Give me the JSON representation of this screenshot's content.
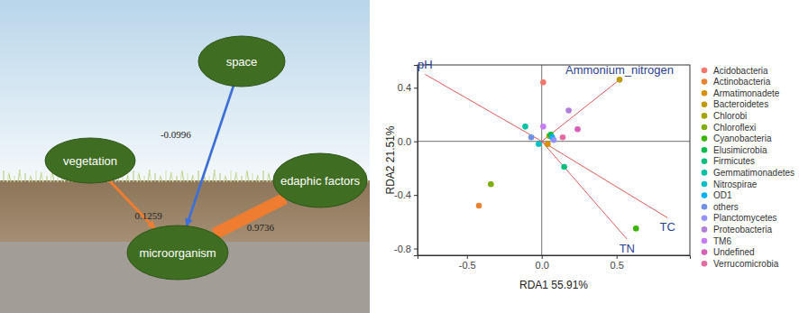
{
  "diagram": {
    "nodes": [
      {
        "label": "space"
      },
      {
        "label": "vegetation"
      },
      {
        "label": "edaphic factors"
      },
      {
        "label": "microorganism"
      }
    ],
    "edges": [
      {
        "from": 0,
        "to": 3,
        "value": -0.0996,
        "color": "#3d6fd6"
      },
      {
        "from": 1,
        "to": 3,
        "value": 0.1259,
        "color": "#ee7d32"
      },
      {
        "from": 2,
        "to": 3,
        "value": 0.9736,
        "color": "#ee7d32"
      }
    ]
  },
  "chart_data": {
    "type": "scatter",
    "x_label": "RDA1 55.91%",
    "y_label": "RDA2 21.51%",
    "xlim": [
      -0.83,
      0.99
    ],
    "ylim": [
      -0.85,
      0.57
    ],
    "xticks": [
      -0.5,
      {
        "value": 0,
        "label": "0.0"
      },
      0.5
    ],
    "yticks": [
      -0.8,
      -0.4,
      {
        "value": 0,
        "label": "0.0"
      },
      0.4
    ],
    "legend": "right",
    "series": [
      {
        "name": "Acidobacteria",
        "color": "#F8766D",
        "x": [
          0.01
        ],
        "y": [
          0.44
        ]
      },
      {
        "name": "Actinobacteria",
        "color": "#EA8331",
        "x": [
          -0.42
        ],
        "y": [
          -0.48
        ]
      },
      {
        "name": "Armatimonadete",
        "color": "#D89000",
        "x": [
          0.04
        ],
        "y": [
          -0.02
        ]
      },
      {
        "name": "Bacteroidetes",
        "color": "#C09B00",
        "x": [
          0.52
        ],
        "y": [
          0.46
        ]
      },
      {
        "name": "Chlorobi",
        "color": "#A3A500",
        "x": [
          0.05
        ],
        "y": [
          0.04
        ]
      },
      {
        "name": "Chloroflexi",
        "color": "#7CAE00",
        "x": [
          -0.34
        ],
        "y": [
          -0.32
        ]
      },
      {
        "name": "Cyanobacteria",
        "color": "#39B600",
        "x": [
          0.63
        ],
        "y": [
          -0.65
        ]
      },
      {
        "name": "Elusimicrobia",
        "color": "#00BB4E",
        "x": [
          0.06
        ],
        "y": [
          0.05
        ]
      },
      {
        "name": "Firmicutes",
        "color": "#00BF7D",
        "x": [
          0.15
        ],
        "y": [
          -0.19
        ]
      },
      {
        "name": "Gemmatimonadetes",
        "color": "#00C1A3",
        "x": [
          -0.11
        ],
        "y": [
          0.11
        ]
      },
      {
        "name": "Nitrospirae",
        "color": "#00BFC4",
        "x": [
          -0.02
        ],
        "y": [
          -0.02
        ]
      },
      {
        "name": "OD1",
        "color": "#00B0F6",
        "x": [
          0.07
        ],
        "y": [
          0.03
        ]
      },
      {
        "name": "others",
        "color": "#6F8FE8",
        "x": [
          -0.07
        ],
        "y": [
          0.03
        ]
      },
      {
        "name": "Planctomycetes",
        "color": "#9590FF",
        "x": [
          0.08
        ],
        "y": [
          0.01
        ]
      },
      {
        "name": "Proteobacteria",
        "color": "#B07FD8",
        "x": [
          0.18
        ],
        "y": [
          0.23
        ]
      },
      {
        "name": "TM6",
        "color": "#C77CFF",
        "x": [
          0.01
        ],
        "y": [
          0.11
        ]
      },
      {
        "name": "Undefined",
        "color": "#D85FB8",
        "x": [
          0.24
        ],
        "y": [
          0.09
        ]
      },
      {
        "name": "Verrucomicrobia",
        "color": "#E76BA3",
        "x": [
          0.14
        ],
        "y": [
          0.03
        ]
      }
    ],
    "arrows": [
      {
        "label": "pH",
        "x": -0.78,
        "y": 0.5
      },
      {
        "label": "Ammonium_nitrogen",
        "x": 0.52,
        "y": 0.46
      },
      {
        "label": "TC",
        "x": 0.84,
        "y": -0.57
      },
      {
        "label": "TN",
        "x": 0.57,
        "y": -0.73
      }
    ]
  }
}
